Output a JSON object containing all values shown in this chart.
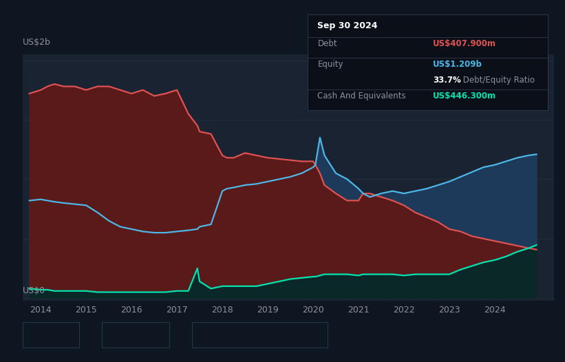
{
  "bg_color": "#0e1621",
  "plot_bg_color": "#1a2332",
  "grid_color": "#2a3545",
  "title_label": "US$2b",
  "zero_label": "US$0",
  "x_min": 2013.6,
  "x_max": 2025.3,
  "y_min": -0.02,
  "y_max": 2.05,
  "debt_color": "#e05252",
  "equity_color": "#4db8e8",
  "cash_color": "#00e5b0",
  "debt_fill_color": "#5a1a1a",
  "equity_fill_color": "#1e3a5a",
  "cash_fill_color": "#0a2828",
  "tooltip_bg": "#0a0f18",
  "tooltip_border": "#2a3545",
  "tooltip_title": "Sep 30 2024",
  "tooltip_debt_label": "Debt",
  "tooltip_debt_value": "US$407.900m",
  "tooltip_equity_label": "Equity",
  "tooltip_equity_value": "US$1.209b",
  "tooltip_ratio_value": "33.7%",
  "tooltip_ratio_label": " Debt/Equity Ratio",
  "tooltip_cash_label": "Cash And Equivalents",
  "tooltip_cash_value": "US$446.300m",
  "xticks": [
    2014,
    2015,
    2016,
    2017,
    2018,
    2019,
    2020,
    2021,
    2022,
    2023,
    2024
  ],
  "years": [
    2013.75,
    2014.0,
    2014.15,
    2014.3,
    2014.5,
    2014.75,
    2015.0,
    2015.25,
    2015.5,
    2015.75,
    2016.0,
    2016.25,
    2016.5,
    2016.75,
    2017.0,
    2017.25,
    2017.45,
    2017.5,
    2017.75,
    2018.0,
    2018.1,
    2018.25,
    2018.5,
    2018.75,
    2019.0,
    2019.25,
    2019.5,
    2019.75,
    2020.0,
    2020.05,
    2020.15,
    2020.25,
    2020.5,
    2020.75,
    2021.0,
    2021.1,
    2021.25,
    2021.5,
    2021.75,
    2022.0,
    2022.25,
    2022.5,
    2022.75,
    2023.0,
    2023.25,
    2023.5,
    2023.75,
    2024.0,
    2024.25,
    2024.5,
    2024.75,
    2024.92
  ],
  "debt": [
    1.72,
    1.75,
    1.78,
    1.8,
    1.78,
    1.78,
    1.75,
    1.78,
    1.78,
    1.75,
    1.72,
    1.75,
    1.7,
    1.72,
    1.75,
    1.55,
    1.45,
    1.4,
    1.38,
    1.2,
    1.18,
    1.18,
    1.22,
    1.2,
    1.18,
    1.17,
    1.16,
    1.15,
    1.15,
    1.12,
    1.05,
    0.95,
    0.88,
    0.82,
    0.82,
    0.88,
    0.88,
    0.85,
    0.82,
    0.78,
    0.72,
    0.68,
    0.64,
    0.58,
    0.56,
    0.52,
    0.5,
    0.48,
    0.46,
    0.44,
    0.42,
    0.408
  ],
  "equity": [
    0.82,
    0.83,
    0.82,
    0.81,
    0.8,
    0.79,
    0.78,
    0.72,
    0.65,
    0.6,
    0.58,
    0.56,
    0.55,
    0.55,
    0.56,
    0.57,
    0.58,
    0.6,
    0.62,
    0.9,
    0.92,
    0.93,
    0.95,
    0.96,
    0.98,
    1.0,
    1.02,
    1.05,
    1.1,
    1.12,
    1.35,
    1.2,
    1.05,
    1.0,
    0.92,
    0.88,
    0.85,
    0.88,
    0.9,
    0.88,
    0.9,
    0.92,
    0.95,
    0.98,
    1.02,
    1.06,
    1.1,
    1.12,
    1.15,
    1.18,
    1.2,
    1.209
  ],
  "cash": [
    0.08,
    0.07,
    0.07,
    0.06,
    0.06,
    0.06,
    0.06,
    0.05,
    0.05,
    0.05,
    0.05,
    0.05,
    0.05,
    0.05,
    0.06,
    0.06,
    0.25,
    0.14,
    0.08,
    0.1,
    0.1,
    0.1,
    0.1,
    0.1,
    0.12,
    0.14,
    0.16,
    0.17,
    0.18,
    0.18,
    0.19,
    0.2,
    0.2,
    0.2,
    0.19,
    0.2,
    0.2,
    0.2,
    0.2,
    0.19,
    0.2,
    0.2,
    0.2,
    0.2,
    0.24,
    0.27,
    0.3,
    0.32,
    0.35,
    0.39,
    0.42,
    0.446
  ]
}
